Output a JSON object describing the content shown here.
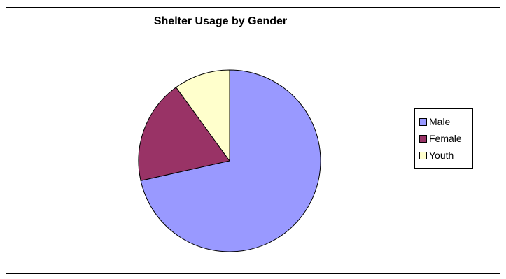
{
  "chart_data": {
    "type": "pie",
    "title": "Shelter Usage by Gender",
    "categories": [
      "Male",
      "Female",
      "Youth"
    ],
    "values": [
      71.5,
      18.5,
      10.0
    ],
    "colors": [
      "#9999FF",
      "#993366",
      "#FFFFCC"
    ],
    "legend": {
      "position": "right",
      "entries": [
        "Male",
        "Female",
        "Youth"
      ]
    }
  }
}
